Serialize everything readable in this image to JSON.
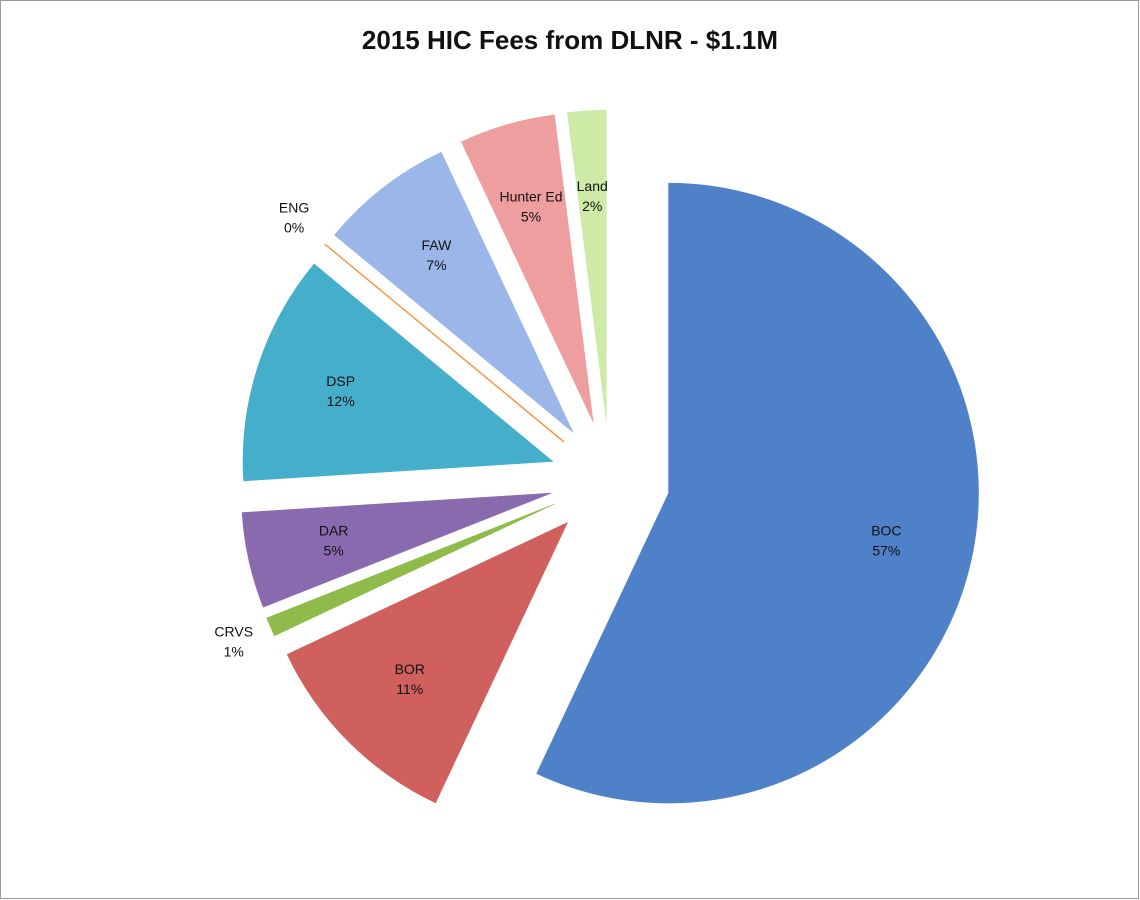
{
  "chart_data": {
    "type": "pie",
    "title": "2015 HIC Fees from DLNR - $1.1M",
    "categories": [
      "BOC",
      "BOR",
      "CRVS",
      "DAR",
      "DSP",
      "ENG",
      "FAW",
      "Hunter Ed",
      "Land"
    ],
    "values": [
      57,
      11,
      1,
      5,
      12,
      0,
      7,
      5,
      2
    ],
    "value_labels": [
      "57%",
      "11%",
      "1%",
      "5%",
      "12%",
      "0%",
      "7%",
      "5%",
      "2%"
    ],
    "colors": [
      "#4f81c9",
      "#d0605d",
      "#8fbb4a",
      "#8a6aae",
      "#45afcb",
      "#f79646",
      "#9bb6e8",
      "#ee9e9e",
      "#cdeaa6"
    ]
  }
}
